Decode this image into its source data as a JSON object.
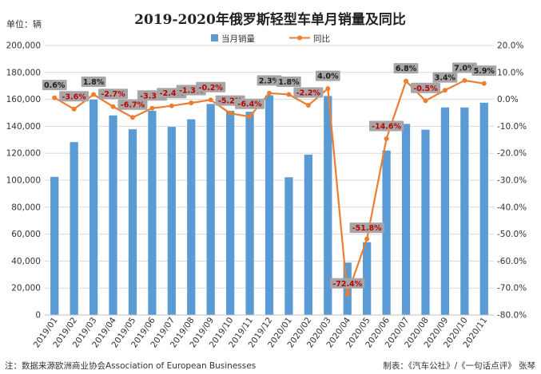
{
  "title": "2019-2020年俄罗斯轻型车单月销量及同比",
  "unit_label": "单位：辆",
  "note_left": "注：数据来源欧洲商业协会Association of European Businesses",
  "note_right": "制表：《汽车公社》/《一句话点评》 张琴",
  "colors": {
    "bar": "#5b9bd5",
    "line": "#ed7d31",
    "label_bg": "#a6a6a6",
    "label_pos": "#1f1f1f",
    "label_neg": "#c00000",
    "grid": "#d9d9d9"
  },
  "chart_data": {
    "type": "bar",
    "categories": [
      "2019/01",
      "2019/02",
      "2019/03",
      "2019/04",
      "2019/05",
      "2019/06",
      "2019/07",
      "2019/08",
      "2019/09",
      "2019/10",
      "2019/11",
      "2019/12",
      "2020/01",
      "2020/02",
      "2020/03",
      "2020/04",
      "2020/05",
      "2020/06",
      "2020/07",
      "2020/08",
      "2020/09",
      "2020/10",
      "2020/11"
    ],
    "series": [
      {
        "name": "当月销量",
        "type": "bar",
        "axis": "left",
        "values": [
          102500,
          128300,
          159800,
          148100,
          137800,
          151500,
          139600,
          145200,
          156600,
          151500,
          150800,
          163000,
          102200,
          119000,
          162500,
          38900,
          54000,
          122000,
          141800,
          137500,
          154000,
          154000,
          157500
        ]
      },
      {
        "name": "同比",
        "type": "line",
        "axis": "right",
        "values": [
          0.6,
          -3.6,
          1.8,
          -2.7,
          -6.7,
          -3.3,
          -2.4,
          -1.3,
          -0.2,
          -5.2,
          -6.4,
          2.3,
          1.8,
          -2.2,
          4.0,
          -72.4,
          -51.8,
          -14.6,
          6.8,
          -0.5,
          3.4,
          7.0,
          5.9
        ],
        "labels": [
          "0.6%",
          "-3.6%",
          "1.8%",
          "-2.7%",
          "-6.7%",
          "-3.3%",
          "-2.4%",
          "-1.3%",
          "-0.2%",
          "-5.2%",
          "-6.4%",
          "2.3%",
          "1.8%",
          "-2.2%",
          "4.0%",
          "-72.4%",
          "-51.8%",
          "-14.6%",
          "6.8%",
          "-0.5%",
          "3.4%",
          "7.0%",
          "5.9%"
        ]
      }
    ],
    "left_axis": {
      "min": 0,
      "max": 200000,
      "step": 20000,
      "tick_labels": [
        "0",
        "20,000",
        "40,000",
        "60,000",
        "80,000",
        "100,000",
        "120,000",
        "140,000",
        "160,000",
        "180,000",
        "200,000"
      ]
    },
    "right_axis": {
      "min": -80,
      "max": 20,
      "step": 10,
      "tick_labels": [
        "-80.0%",
        "-70.0%",
        "-60.0%",
        "-50.0%",
        "-40.0%",
        "-30.0%",
        "-20.0%",
        "-10.0%",
        "0.0%",
        "10.0%",
        "20.0%"
      ]
    },
    "grid": true,
    "legend_position": "top-center"
  }
}
